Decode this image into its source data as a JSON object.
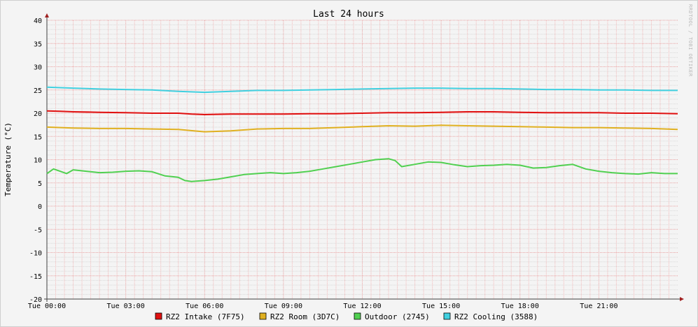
{
  "chart_data": {
    "type": "line",
    "title": "Last 24 hours",
    "ylabel": "Temperature (°C)",
    "watermark": "RRDTOOL / TOBI OETIKER",
    "ylim": [
      -20,
      40
    ],
    "y_ticks": [
      40,
      35,
      30,
      25,
      20,
      15,
      10,
      5,
      0,
      -5,
      -10,
      -15,
      -20
    ],
    "xlim": [
      0,
      24
    ],
    "x_ticks": [
      0,
      3,
      6,
      9,
      12,
      15,
      18,
      21
    ],
    "x_tick_labels": [
      "Tue 00:00",
      "Tue 03:00",
      "Tue 06:00",
      "Tue 09:00",
      "Tue 12:00",
      "Tue 15:00",
      "Tue 18:00",
      "Tue 21:00"
    ],
    "grid": true,
    "legend_position": "bottom",
    "series": [
      {
        "name": "RZ2 Intake (7F75)",
        "color": "#e01010",
        "x": [
          0,
          0.5,
          1,
          2,
          3,
          4,
          5,
          5.5,
          6,
          7,
          8,
          9,
          10,
          11,
          12,
          13,
          14,
          15,
          16,
          17,
          18,
          19,
          20,
          21,
          22,
          23,
          24
        ],
        "values": [
          20.5,
          20.4,
          20.3,
          20.2,
          20.1,
          20.0,
          20.0,
          19.8,
          19.7,
          19.8,
          19.8,
          19.8,
          19.9,
          19.9,
          20.0,
          20.1,
          20.1,
          20.2,
          20.3,
          20.3,
          20.2,
          20.1,
          20.1,
          20.1,
          20.0,
          20.0,
          19.9
        ]
      },
      {
        "name": "RZ2 Room (3D7C)",
        "color": "#e0b020",
        "x": [
          0,
          1,
          2,
          3,
          4,
          5,
          6,
          7,
          8,
          9,
          10,
          11,
          12,
          13,
          14,
          15,
          16,
          17,
          18,
          19,
          20,
          21,
          22,
          23,
          24
        ],
        "values": [
          17.0,
          16.8,
          16.7,
          16.7,
          16.6,
          16.5,
          16.0,
          16.2,
          16.6,
          16.7,
          16.7,
          16.9,
          17.1,
          17.3,
          17.2,
          17.4,
          17.3,
          17.2,
          17.1,
          17.0,
          16.9,
          16.9,
          16.8,
          16.7,
          16.5
        ]
      },
      {
        "name": "Outdoor (2745)",
        "color": "#50d050",
        "x": [
          0,
          0.25,
          0.5,
          0.75,
          1,
          1.5,
          2,
          2.5,
          3,
          3.5,
          4,
          4.5,
          5,
          5.25,
          5.5,
          6,
          6.5,
          7,
          7.5,
          8,
          8.5,
          9,
          9.5,
          10,
          10.5,
          11,
          11.5,
          12,
          12.5,
          13,
          13.25,
          13.5,
          14,
          14.5,
          15,
          15.5,
          16,
          16.5,
          17,
          17.5,
          18,
          18.5,
          19,
          19.5,
          20,
          20.5,
          21,
          21.5,
          22,
          22.5,
          23,
          23.5,
          24
        ],
        "values": [
          7.0,
          8.0,
          7.5,
          7.0,
          7.8,
          7.5,
          7.2,
          7.3,
          7.5,
          7.6,
          7.4,
          6.5,
          6.2,
          5.5,
          5.3,
          5.5,
          5.8,
          6.3,
          6.8,
          7.0,
          7.2,
          7.0,
          7.2,
          7.5,
          8.0,
          8.5,
          9.0,
          9.5,
          10.0,
          10.2,
          9.8,
          8.5,
          9.0,
          9.5,
          9.4,
          8.9,
          8.5,
          8.7,
          8.8,
          9.0,
          8.8,
          8.2,
          8.3,
          8.7,
          9.0,
          8.0,
          7.5,
          7.2,
          7.0,
          6.9,
          7.2,
          7.0,
          7.0
        ]
      },
      {
        "name": "RZ2 Cooling (3588)",
        "color": "#40d0e0",
        "x": [
          0,
          1,
          2,
          3,
          4,
          5,
          6,
          7,
          8,
          9,
          10,
          11,
          12,
          13,
          14,
          15,
          16,
          17,
          18,
          19,
          20,
          21,
          22,
          23,
          24
        ],
        "values": [
          25.6,
          25.4,
          25.2,
          25.1,
          25.0,
          24.7,
          24.5,
          24.7,
          24.9,
          24.9,
          25.0,
          25.1,
          25.2,
          25.3,
          25.4,
          25.4,
          25.3,
          25.3,
          25.2,
          25.1,
          25.1,
          25.0,
          25.0,
          24.9,
          24.9
        ]
      }
    ]
  }
}
